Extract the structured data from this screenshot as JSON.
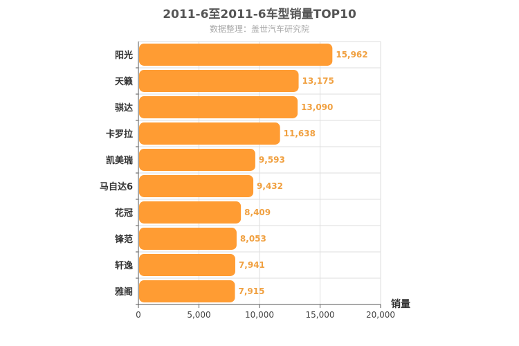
{
  "chart_data": {
    "type": "bar",
    "orientation": "horizontal",
    "title": "2011-6至2011-6车型销量TOP10",
    "subtitle": "数据整理：盖世汽车研究院",
    "xlabel": "销量",
    "ylabel": "",
    "xlim": [
      0,
      20000
    ],
    "x_ticks": [
      0,
      5000,
      10000,
      15000,
      20000
    ],
    "x_tick_labels": [
      "0",
      "5,000",
      "10,000",
      "15,000",
      "20,000"
    ],
    "grid": true,
    "bar_color": "#ff9c33",
    "value_label_color": "#f0a040",
    "categories": [
      "阳光",
      "天籁",
      "骐达",
      "卡罗拉",
      "凯美瑞",
      "马自达6",
      "花冠",
      "锋范",
      "轩逸",
      "雅阁"
    ],
    "values": [
      15962,
      13175,
      13090,
      11638,
      9593,
      9432,
      8409,
      8053,
      7941,
      7915
    ],
    "value_labels": [
      "15,962",
      "13,175",
      "13,090",
      "11,638",
      "9,593",
      "9,432",
      "8,409",
      "8,053",
      "7,941",
      "7,915"
    ]
  }
}
